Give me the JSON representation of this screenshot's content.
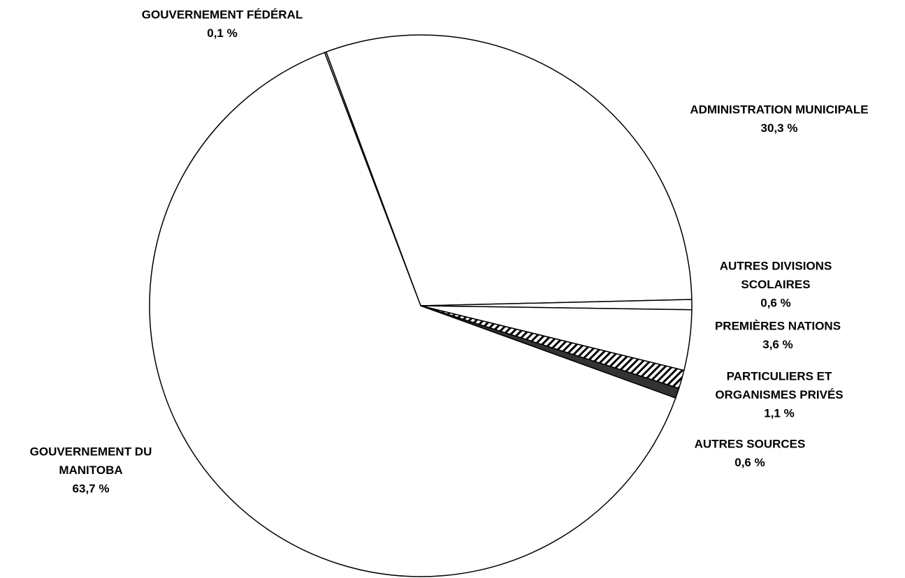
{
  "chart_data": {
    "type": "pie",
    "labels": [
      [
        "GOUVERNEMENT FÉDÉRAL"
      ],
      [
        "ADMINISTRATION MUNICIPALE"
      ],
      [
        "AUTRES DIVISIONS",
        "SCOLAIRES"
      ],
      [
        "PREMIÈRES NATIONS"
      ],
      [
        "PARTICULIERS ET",
        "ORGANISMES PRIVÉS"
      ],
      [
        "AUTRES SOURCES"
      ],
      [
        "GOUVERNEMENT DU",
        "MANITOBA"
      ]
    ],
    "values": [
      0.1,
      30.3,
      0.6,
      3.6,
      1.1,
      0.6,
      63.7
    ],
    "value_labels": [
      "0,1 %",
      "30,3 %",
      "0,6 %",
      "3,6 %",
      "1,1 %",
      "0,6 %",
      "63,7 %"
    ],
    "colors": [
      "#ffffff",
      "#ffffff",
      "#ffffff",
      "#ffffff",
      "hatch",
      "#333333",
      "#ffffff"
    ]
  }
}
